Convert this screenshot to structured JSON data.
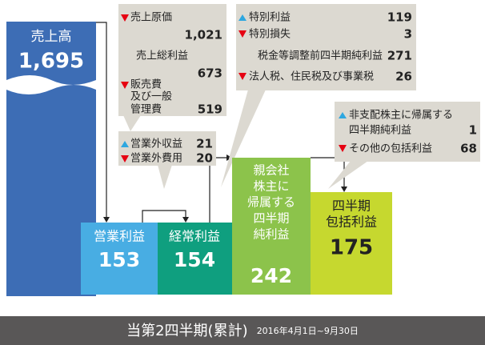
{
  "sales": {
    "label": "売上高",
    "value": "1,695"
  },
  "callouts": [
    {
      "items": [
        {
          "label": "売上原価",
          "value": "1,021"
        },
        {
          "label": "売上総利益",
          "value": "673"
        },
        {
          "label": [
            "販売費",
            "及び一般",
            "管理費"
          ],
          "value": "519"
        }
      ]
    },
    {
      "items": [
        {
          "label": "営業外収益",
          "value": "21"
        },
        {
          "label": "営業外費用",
          "value": "20"
        }
      ]
    },
    {
      "items": [
        {
          "label": "特別利益",
          "value": "119"
        },
        {
          "label": "特別損失",
          "value": "3"
        },
        {
          "label": "税金等調整前四半期純利益",
          "value": "271"
        },
        {
          "label": "法人税、住民税及び事業税",
          "value": "26"
        }
      ]
    },
    {
      "items": [
        {
          "label": [
            "非支配株主に帰属する",
            "四半期純利益"
          ],
          "value": "1"
        },
        {
          "label": "その他の包括利益",
          "value": "68"
        }
      ]
    }
  ],
  "bars": [
    {
      "label": [
        "営業利益"
      ],
      "value": "153"
    },
    {
      "label": [
        "経常利益"
      ],
      "value": "154"
    },
    {
      "label": [
        "親会社",
        "株主に",
        "帰属する",
        "四半期",
        "純利益"
      ],
      "value": "242"
    },
    {
      "label": [
        "四半期",
        "包括利益"
      ],
      "value": "175"
    }
  ],
  "footer": {
    "title": "当第2四半期(累計)",
    "period": "2016年4月1日~9月30日"
  }
}
